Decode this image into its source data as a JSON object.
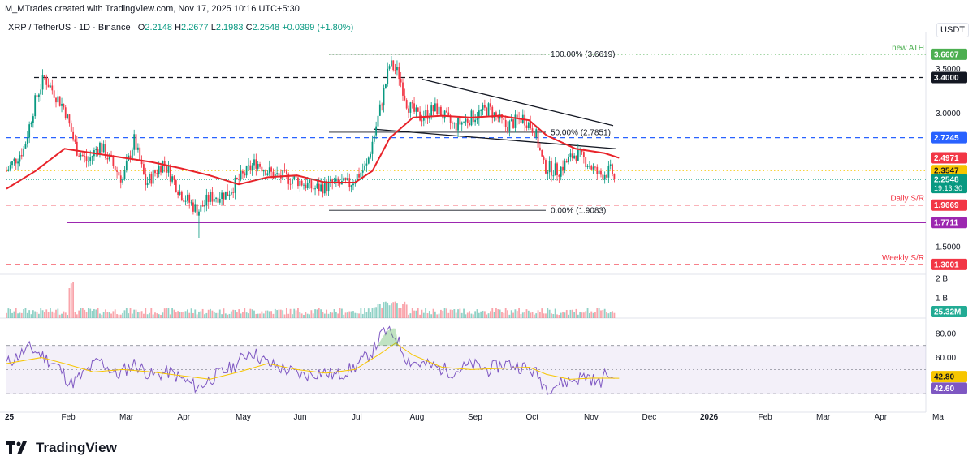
{
  "header": {
    "credit": "M_MTrades created with TradingView.com, Nov 17, 2025 10:16 UTC+5:30",
    "symbol": "XRP / TetherUS · 1D · Binance",
    "o_label": "O",
    "o_value": "2.2148",
    "h_label": "H",
    "h_value": "2.2677",
    "l_label": "L",
    "l_value": "2.1983",
    "c_label": "C",
    "c_value": "2.2548",
    "change": "+0.0399 (+1.80%)",
    "currency": "USDT"
  },
  "logo": {
    "text": "TradingView"
  },
  "colors": {
    "up": "#089981",
    "down": "#f23645",
    "ma": "#e8232a",
    "blue_level": "#2962ff",
    "purple_level": "#9c27b0",
    "green_ath": "#4caf50",
    "yellow_level": "#f7c600",
    "rsi": "#7e57c2",
    "rsi_ma": "#f7c600"
  },
  "chart_data": {
    "type": "candlestick",
    "title": "XRP / TetherUS · 1D · Binance",
    "price_axis": {
      "ylim": [
        1.19,
        3.86
      ],
      "ticks": [
        "1.5000",
        "3.0000",
        "3.5000"
      ],
      "tick_values": [
        1.5,
        3.0,
        3.5
      ]
    },
    "time_axis": {
      "labels": [
        "25",
        "Feb",
        "Mar",
        "Apr",
        "May",
        "Jun",
        "Jul",
        "Aug",
        "Sep",
        "Oct",
        "Nov",
        "Dec",
        "2026",
        "Feb",
        "Mar",
        "Apr",
        "Ma"
      ],
      "bold": [
        "25",
        "2026"
      ]
    },
    "candles_months": [
      0,
      10.5
    ],
    "price_path": [
      [
        0,
        2.35
      ],
      [
        0.3,
        2.6
      ],
      [
        0.5,
        3.15
      ],
      [
        0.65,
        3.4
      ],
      [
        1.0,
        3.05
      ],
      [
        1.2,
        2.6
      ],
      [
        1.4,
        2.45
      ],
      [
        1.6,
        2.65
      ],
      [
        2.0,
        2.25
      ],
      [
        2.2,
        2.7
      ],
      [
        2.4,
        2.2
      ],
      [
        2.7,
        2.45
      ],
      [
        3.0,
        2.1
      ],
      [
        3.3,
        1.9
      ],
      [
        3.5,
        2.05
      ],
      [
        3.8,
        2.1
      ],
      [
        4.0,
        2.25
      ],
      [
        4.3,
        2.45
      ],
      [
        4.6,
        2.3
      ],
      [
        5.0,
        2.25
      ],
      [
        5.3,
        2.15
      ],
      [
        5.6,
        2.2
      ],
      [
        5.9,
        2.2
      ],
      [
        6.2,
        2.4
      ],
      [
        6.4,
        2.95
      ],
      [
        6.6,
        3.55
      ],
      [
        6.75,
        3.45
      ],
      [
        6.9,
        3.1
      ],
      [
        7.1,
        2.95
      ],
      [
        7.4,
        3.05
      ],
      [
        7.7,
        2.85
      ],
      [
        8.0,
        2.95
      ],
      [
        8.3,
        3.05
      ],
      [
        8.6,
        2.85
      ],
      [
        8.9,
        2.95
      ],
      [
        9.1,
        2.8
      ],
      [
        9.25,
        2.4
      ],
      [
        9.5,
        2.35
      ],
      [
        9.8,
        2.55
      ],
      [
        10.0,
        2.45
      ],
      [
        10.2,
        2.3
      ],
      [
        10.4,
        2.35
      ],
      [
        10.55,
        2.25
      ]
    ],
    "ma_path": [
      [
        0,
        2.15
      ],
      [
        0.5,
        2.35
      ],
      [
        1.0,
        2.6
      ],
      [
        1.5,
        2.55
      ],
      [
        2.0,
        2.5
      ],
      [
        2.5,
        2.45
      ],
      [
        3.0,
        2.38
      ],
      [
        3.5,
        2.3
      ],
      [
        4.0,
        2.2
      ],
      [
        4.5,
        2.28
      ],
      [
        5.0,
        2.3
      ],
      [
        5.5,
        2.22
      ],
      [
        6.0,
        2.22
      ],
      [
        6.3,
        2.35
      ],
      [
        6.6,
        2.72
      ],
      [
        7.0,
        2.95
      ],
      [
        7.5,
        2.97
      ],
      [
        8.0,
        2.95
      ],
      [
        8.5,
        2.97
      ],
      [
        9.0,
        2.92
      ],
      [
        9.3,
        2.75
      ],
      [
        9.8,
        2.6
      ],
      [
        10.3,
        2.55
      ],
      [
        10.55,
        2.4971
      ]
    ],
    "levels": [
      {
        "name": "new-ath",
        "value": 3.6607,
        "label": "3.6607",
        "caption": "new ATH",
        "style": "dotted",
        "color": "#4caf50"
      },
      {
        "name": "resistance-3-40",
        "value": 3.4,
        "label": "3.4000",
        "caption": "",
        "style": "dashed",
        "color": "#131722"
      },
      {
        "name": "resistance-2-72",
        "value": 2.7245,
        "label": "2.7245",
        "caption": "",
        "style": "dashed",
        "color": "#2962ff"
      },
      {
        "name": "ma-level",
        "value": 2.4971,
        "label": "2.4971",
        "caption": "",
        "style": "none",
        "color": "#f23645"
      },
      {
        "name": "level-2-35",
        "value": 2.3547,
        "label": "2.3547",
        "caption": "",
        "style": "dotted",
        "color": "#f7c600"
      },
      {
        "name": "daily-sr",
        "value": 1.9669,
        "label": "1.9669",
        "caption": "Daily S/R",
        "style": "dashed",
        "color": "#f23645"
      },
      {
        "name": "support-1-77",
        "value": 1.7711,
        "label": "1.7711",
        "caption": "",
        "style": "solid",
        "color": "#9c27b0"
      },
      {
        "name": "weekly-sr",
        "value": 1.3001,
        "label": "1.3001",
        "caption": "Weekly S/R",
        "style": "dashed",
        "color": "#f23645"
      }
    ],
    "last_price": {
      "value": 2.2548,
      "label": "2.2548",
      "countdown": "19:13:30",
      "color": "#089981"
    },
    "fibonacci": [
      {
        "label": "100.00% (3.6619)",
        "value": 3.6619
      },
      {
        "label": "50.00% (2.7851)",
        "value": 2.7851
      },
      {
        "label": "0.00% (1.9083)",
        "value": 1.9083
      }
    ],
    "volume": {
      "ticks": [
        "2 B",
        "1 B"
      ],
      "tick_values": [
        2,
        1
      ],
      "last": "25.32M"
    },
    "rsi": {
      "ticks": [
        "80.00",
        "60.00"
      ],
      "tick_values": [
        80,
        60
      ],
      "bands": [
        70,
        30
      ],
      "value": 42.6,
      "value_label": "42.60",
      "ma_value": 42.8,
      "ma_label": "42.80",
      "path": [
        [
          0,
          55
        ],
        [
          0.4,
          68
        ],
        [
          0.6,
          62
        ],
        [
          0.9,
          52
        ],
        [
          1.1,
          38
        ],
        [
          1.3,
          45
        ],
        [
          1.6,
          58
        ],
        [
          1.9,
          45
        ],
        [
          2.2,
          55
        ],
        [
          2.5,
          45
        ],
        [
          2.8,
          48
        ],
        [
          3.1,
          40
        ],
        [
          3.3,
          35
        ],
        [
          3.6,
          45
        ],
        [
          3.9,
          52
        ],
        [
          4.2,
          66
        ],
        [
          4.5,
          55
        ],
        [
          4.8,
          50
        ],
        [
          5.1,
          45
        ],
        [
          5.4,
          48
        ],
        [
          5.7,
          45
        ],
        [
          6.0,
          52
        ],
        [
          6.3,
          65
        ],
        [
          6.5,
          82
        ],
        [
          6.7,
          78
        ],
        [
          6.9,
          58
        ],
        [
          7.1,
          55
        ],
        [
          7.4,
          52
        ],
        [
          7.7,
          48
        ],
        [
          8.0,
          54
        ],
        [
          8.3,
          50
        ],
        [
          8.6,
          55
        ],
        [
          8.9,
          52
        ],
        [
          9.1,
          48
        ],
        [
          9.3,
          35
        ],
        [
          9.5,
          38
        ],
        [
          9.8,
          42
        ],
        [
          10.0,
          45
        ],
        [
          10.2,
          38
        ],
        [
          10.35,
          48
        ],
        [
          10.45,
          40
        ],
        [
          10.55,
          42.6
        ]
      ],
      "ma_path": [
        [
          0,
          55
        ],
        [
          0.6,
          60
        ],
        [
          1.0,
          55
        ],
        [
          1.5,
          48
        ],
        [
          2.0,
          50
        ],
        [
          2.5,
          48
        ],
        [
          3.0,
          45
        ],
        [
          3.5,
          42
        ],
        [
          4.0,
          48
        ],
        [
          4.5,
          55
        ],
        [
          5.0,
          50
        ],
        [
          5.5,
          47
        ],
        [
          6.0,
          50
        ],
        [
          6.4,
          62
        ],
        [
          6.7,
          72
        ],
        [
          7.0,
          62
        ],
        [
          7.5,
          52
        ],
        [
          8.0,
          50
        ],
        [
          8.5,
          51
        ],
        [
          9.0,
          52
        ],
        [
          9.3,
          46
        ],
        [
          9.7,
          42
        ],
        [
          10.1,
          43
        ],
        [
          10.55,
          42.8
        ]
      ]
    }
  }
}
